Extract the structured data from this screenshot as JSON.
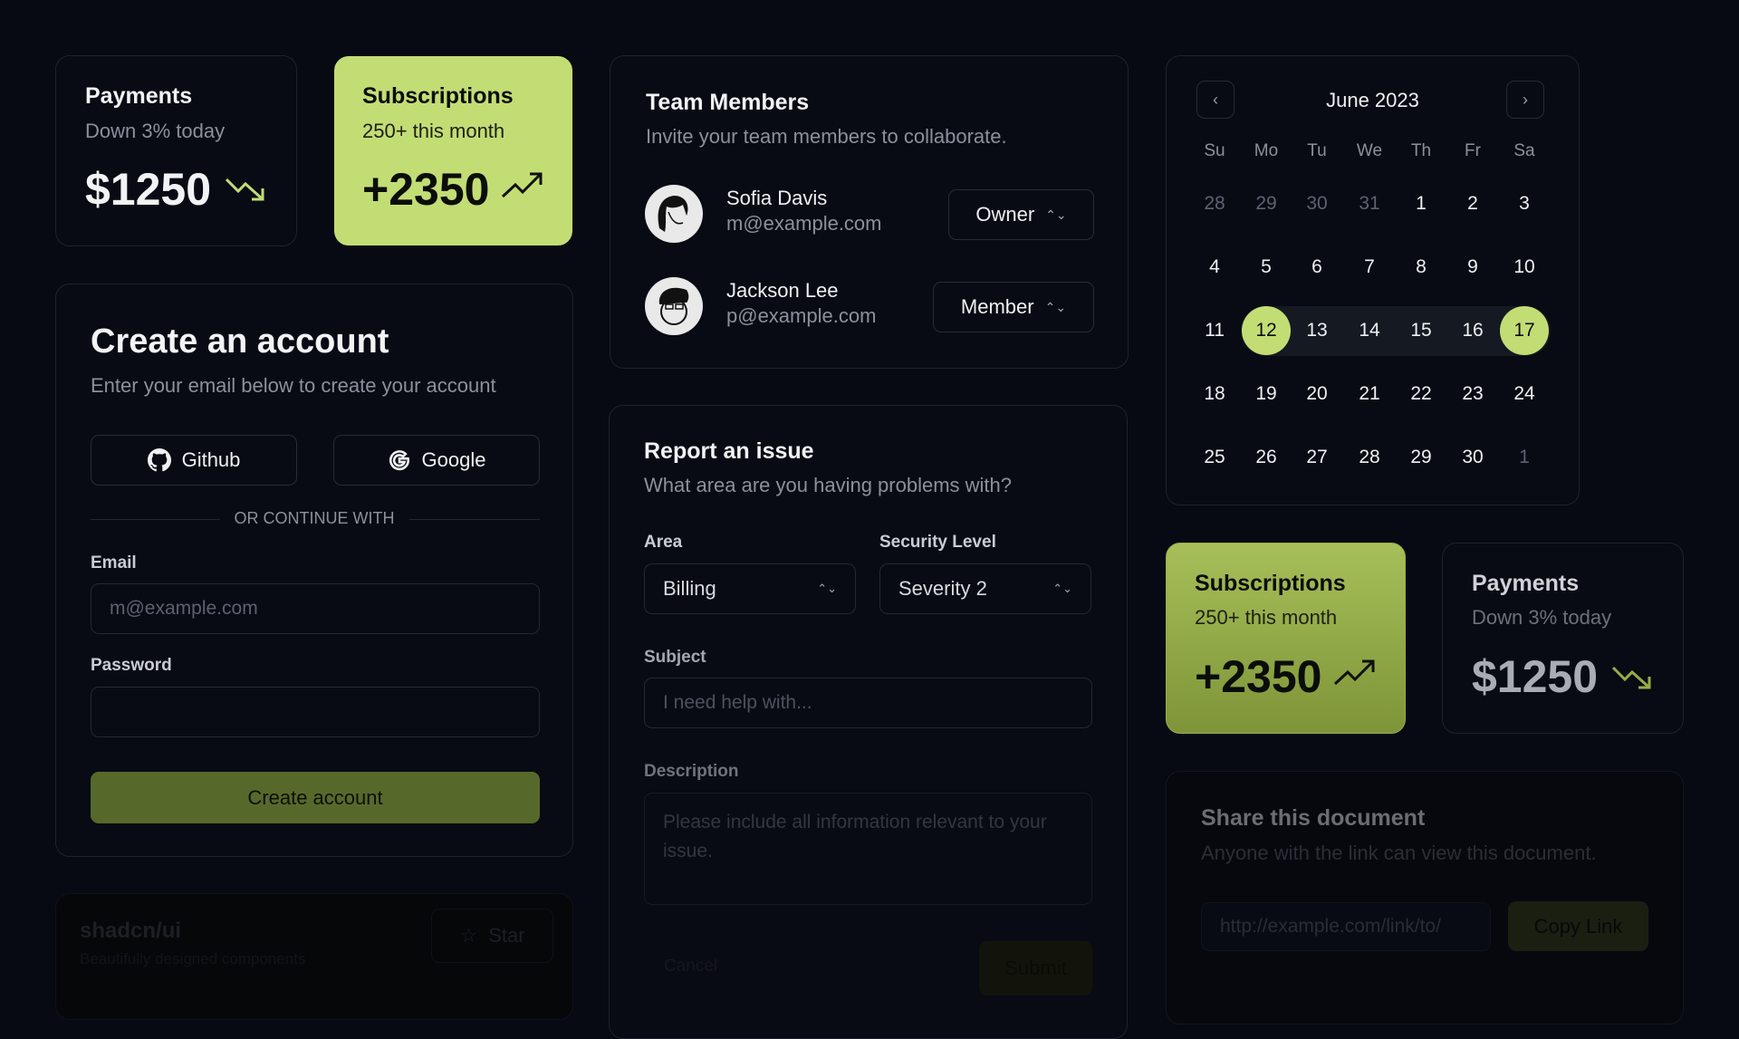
{
  "colors": {
    "accent": "#c3dd75",
    "background": "#070a12"
  },
  "payments_top": {
    "title": "Payments",
    "subtitle": "Down 3% today",
    "value": "$1250",
    "icon": "trending-down-icon"
  },
  "subscriptions_top": {
    "title": "Subscriptions",
    "subtitle": "250+ this month",
    "value": "+2350",
    "icon": "trending-up-icon"
  },
  "create_account": {
    "title": "Create an account",
    "subtitle": "Enter your email below to create your account",
    "github": "Github",
    "google": "Google",
    "separator": "OR CONTINUE WITH",
    "email_label": "Email",
    "email_placeholder": "m@example.com",
    "password_label": "Password",
    "submit": "Create account"
  },
  "team": {
    "title": "Team Members",
    "subtitle": "Invite your team members to collaborate.",
    "members": [
      {
        "name": "Sofia Davis",
        "email": "m@example.com",
        "role": "Owner"
      },
      {
        "name": "Jackson Lee",
        "email": "p@example.com",
        "role": "Member"
      }
    ]
  },
  "calendar": {
    "month": "June 2023",
    "weekdays": [
      "Su",
      "Mo",
      "Tu",
      "We",
      "Th",
      "Fr",
      "Sa"
    ],
    "weeks": [
      [
        "28",
        "29",
        "30",
        "31",
        "1",
        "2",
        "3"
      ],
      [
        "4",
        "5",
        "6",
        "7",
        "8",
        "9",
        "10"
      ],
      [
        "11",
        "12",
        "13",
        "14",
        "15",
        "16",
        "17"
      ],
      [
        "18",
        "19",
        "20",
        "21",
        "22",
        "23",
        "24"
      ],
      [
        "25",
        "26",
        "27",
        "28",
        "29",
        "30",
        "1"
      ]
    ],
    "range_start": "12",
    "range_end": "17"
  },
  "report": {
    "title": "Report an issue",
    "subtitle": "What area are you having problems with?",
    "area_label": "Area",
    "area_value": "Billing",
    "security_label": "Security Level",
    "security_value": "Severity 2",
    "subject_label": "Subject",
    "subject_placeholder": "I need help with...",
    "description_label": "Description",
    "description_placeholder": "Please include all information relevant to your issue.",
    "cancel": "Cancel",
    "submit": "Submit"
  },
  "subscriptions_bottom": {
    "title": "Subscriptions",
    "subtitle": "250+ this month",
    "value": "+2350",
    "icon": "trending-up-icon"
  },
  "payments_bottom": {
    "title": "Payments",
    "subtitle": "Down 3% today",
    "value": "$1250",
    "icon": "trending-down-icon"
  },
  "share": {
    "title": "Share this document",
    "subtitle": "Anyone with the link can view this document.",
    "link": "http://example.com/link/to/",
    "copy": "Copy Link"
  },
  "repo": {
    "title": "shadcn/ui",
    "subtitle": "Beautifully designed components",
    "star": "Star"
  }
}
